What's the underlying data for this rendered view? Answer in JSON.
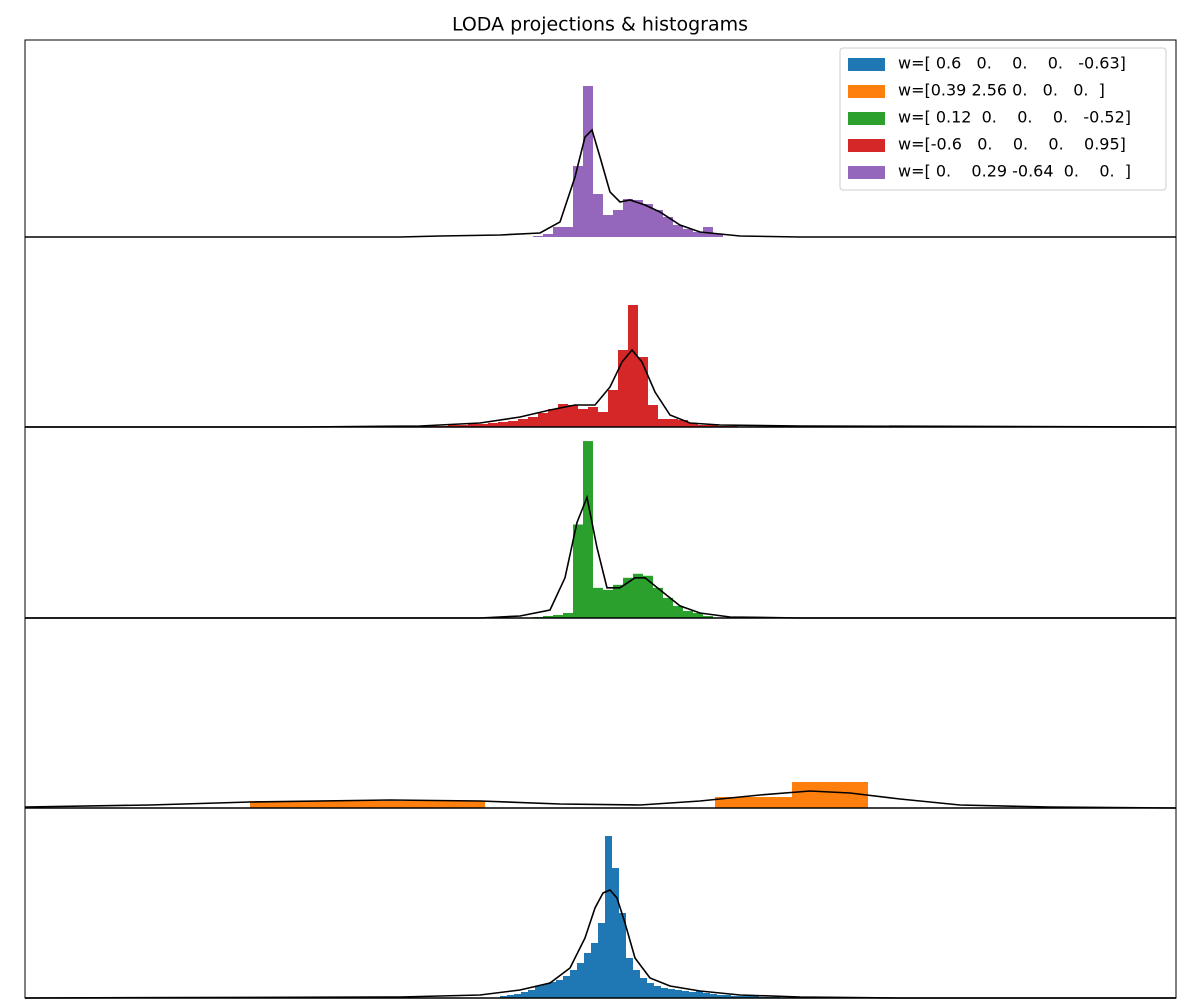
{
  "chart_data": {
    "type": "histogram",
    "title": "LODA projections & histograms",
    "legend_position": "upper right",
    "xlim": [
      0,
      1151
    ],
    "series": [
      {
        "name": "w=[ 0.6   0.    0.    0.   -0.63]",
        "color": "#1f77b4",
        "ylim": [
          0,
          190
        ],
        "bins": [
          475,
          482,
          489,
          496,
          503,
          510,
          517,
          524,
          531,
          538,
          545,
          552,
          559,
          566,
          573,
          580,
          587,
          594,
          601,
          608,
          615,
          622,
          629,
          636,
          643,
          650,
          657,
          664,
          671,
          678,
          685,
          692,
          699,
          706,
          713,
          720,
          727,
          734,
          741,
          748,
          755
        ],
        "counts": [
          2,
          3,
          4,
          6,
          8,
          12,
          14,
          16,
          18,
          22,
          28,
          35,
          45,
          55,
          75,
          162,
          130,
          85,
          40,
          28,
          20,
          15,
          12,
          10,
          9,
          8,
          7,
          6,
          7,
          5,
          4,
          3,
          3,
          2,
          2,
          2,
          3,
          1,
          1,
          1
        ],
        "kde_x": [
          0,
          375,
          455,
          495,
          525,
          545,
          560,
          570,
          578,
          585,
          592,
          600,
          610,
          625,
          645,
          675,
          715,
          775,
          875,
          1151
        ],
        "kde_y": [
          0,
          1,
          3,
          8,
          15,
          30,
          60,
          90,
          105,
          108,
          100,
          75,
          40,
          20,
          12,
          7,
          3,
          1,
          0,
          0
        ]
      },
      {
        "name": "w=[0.39 2.56 0.   0.   0.  ]",
        "color": "#ff7f0e",
        "ylim": [
          0,
          190
        ],
        "bins": [
          225,
          460,
          690,
          767,
          843
        ],
        "counts": [
          7,
          0,
          11,
          26
        ],
        "kde_x": [
          0,
          125,
          225,
          365,
          455,
          535,
          615,
          675,
          735,
          785,
          825,
          875,
          935,
          1025,
          1151
        ],
        "kde_y": [
          1,
          3,
          6,
          8,
          7,
          4,
          3,
          7,
          13,
          17,
          15,
          9,
          3,
          1,
          0
        ]
      },
      {
        "name": "w=[ 0.12  0.    0.    0.   -0.52]",
        "color": "#2ca02c",
        "ylim": [
          0,
          190
        ],
        "bins": [
          508,
          518,
          528,
          538,
          548,
          558,
          568,
          578,
          588,
          598,
          608,
          618,
          628,
          638,
          648,
          658,
          668,
          678,
          688
        ],
        "counts": [
          1,
          2,
          3,
          5,
          93,
          176,
          30,
          28,
          33,
          40,
          44,
          42,
          30,
          20,
          12,
          7,
          5,
          2
        ],
        "kde_x": [
          0,
          455,
          495,
          525,
          540,
          552,
          562,
          572,
          582,
          595,
          610,
          620,
          635,
          655,
          675,
          705,
          775,
          1151
        ],
        "kde_y": [
          0,
          0,
          2,
          8,
          40,
          95,
          120,
          70,
          30,
          30,
          40,
          40,
          28,
          12,
          5,
          1,
          0,
          0
        ]
      },
      {
        "name": "w=[-0.6   0.    0.    0.    0.95]",
        "color": "#d62728",
        "ylim": [
          0,
          190
        ],
        "bins": [
          393,
          403,
          413,
          423,
          433,
          443,
          453,
          463,
          473,
          483,
          493,
          503,
          513,
          523,
          533,
          543,
          553,
          563,
          573,
          583,
          593,
          603,
          613,
          623,
          633,
          643,
          653,
          663,
          673,
          683,
          693,
          703,
          713
        ],
        "counts": [
          1,
          1,
          1,
          2,
          2,
          3,
          3,
          4,
          5,
          6,
          8,
          10,
          14,
          18,
          23,
          22,
          18,
          20,
          15,
          37,
          77,
          122,
          70,
          22,
          8,
          8,
          7,
          4,
          2,
          3,
          1,
          1
        ],
        "kde_x": [
          0,
          275,
          395,
          455,
          495,
          525,
          550,
          570,
          585,
          597,
          607,
          617,
          630,
          645,
          665,
          695,
          775,
          1151
        ],
        "kde_y": [
          0,
          0,
          1,
          4,
          10,
          17,
          22,
          22,
          40,
          65,
          77,
          65,
          35,
          12,
          4,
          2,
          1,
          0
        ]
      },
      {
        "name": "w=[ 0.    0.29 -0.64  0.    0.  ]",
        "color": "#9467bd",
        "ylim": [
          0,
          197
        ],
        "bins": [
          508,
          518,
          528,
          538,
          548,
          558,
          568,
          578,
          588,
          598,
          608,
          618,
          628,
          638,
          648,
          658,
          668,
          678,
          688,
          698
        ],
        "counts": [
          1,
          3,
          10,
          10,
          71,
          151,
          43,
          22,
          27,
          38,
          37,
          33,
          27,
          20,
          12,
          8,
          5,
          10,
          3
        ],
        "kde_x": [
          0,
          375,
          415,
          475,
          515,
          535,
          550,
          560,
          567,
          575,
          585,
          595,
          605,
          620,
          635,
          655,
          675,
          715,
          775,
          1151
        ],
        "kde_y": [
          0,
          0,
          1,
          2,
          4,
          15,
          60,
          100,
          107,
          80,
          45,
          35,
          37,
          32,
          25,
          12,
          5,
          1,
          0,
          0
        ]
      }
    ]
  }
}
